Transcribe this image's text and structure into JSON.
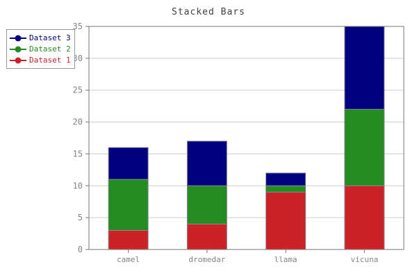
{
  "figure": {
    "title": "Stacked Bars",
    "title_color": "#404040",
    "background": "#ffffff",
    "axis_color": "#8a8a8a",
    "grid_color": "#cccccc",
    "tick_label_color": "#848484",
    "bar_outline_color": "#8a8a8a",
    "legend": {
      "border_color": "#999999",
      "items": [
        {
          "label": "Dataset 3",
          "color": "#000080"
        },
        {
          "label": "Dataset 2",
          "color": "#228B22"
        },
        {
          "label": "Dataset 1",
          "color": "#CC2127"
        }
      ]
    }
  },
  "chart_data": {
    "type": "bar",
    "stacked": true,
    "title": "Stacked Bars",
    "xlabel": "",
    "ylabel": "",
    "categories": [
      "camel",
      "dromedar",
      "llama",
      "vicuna"
    ],
    "series": [
      {
        "name": "Dataset 1",
        "color": "#CC2127",
        "values": [
          3,
          4,
          9,
          10
        ]
      },
      {
        "name": "Dataset 2",
        "color": "#228B22",
        "values": [
          8,
          6,
          1,
          12
        ]
      },
      {
        "name": "Dataset 3",
        "color": "#000080",
        "values": [
          5,
          7,
          2,
          13
        ]
      }
    ],
    "stack_totals": [
      16,
      17,
      12,
      35
    ],
    "ylim": [
      0,
      35
    ],
    "yticks": [
      0,
      5,
      10,
      15,
      20,
      25,
      30,
      35
    ],
    "grid": true,
    "legend_position": "outside-top-left",
    "legend_order": [
      "Dataset 3",
      "Dataset 2",
      "Dataset 1"
    ]
  }
}
